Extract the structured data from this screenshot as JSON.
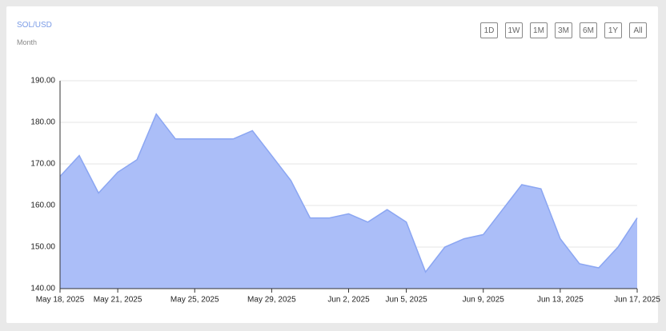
{
  "chart_data": {
    "type": "area",
    "title": "SOL/USD",
    "subtitle": "Month",
    "range_buttons": [
      "1D",
      "1W",
      "1M",
      "3M",
      "6M",
      "1Y",
      "All"
    ],
    "x": [
      "2025-05-18",
      "2025-05-19",
      "2025-05-20",
      "2025-05-21",
      "2025-05-22",
      "2025-05-23",
      "2025-05-24",
      "2025-05-25",
      "2025-05-26",
      "2025-05-27",
      "2025-05-28",
      "2025-05-29",
      "2025-05-30",
      "2025-05-31",
      "2025-06-01",
      "2025-06-02",
      "2025-06-03",
      "2025-06-04",
      "2025-06-05",
      "2025-06-06",
      "2025-06-07",
      "2025-06-08",
      "2025-06-09",
      "2025-06-10",
      "2025-06-11",
      "2025-06-12",
      "2025-06-13",
      "2025-06-14",
      "2025-06-15",
      "2025-06-16",
      "2025-06-17"
    ],
    "series": [
      {
        "name": "SOL/USD",
        "color": "#8ba6f2",
        "fill": "#abbef8",
        "values": [
          167,
          172,
          163,
          168,
          171,
          182,
          176,
          176,
          176,
          176,
          178,
          172,
          166,
          157,
          157,
          158,
          156,
          159,
          156,
          144,
          150,
          152,
          153,
          159,
          165,
          164,
          152,
          146,
          145,
          150,
          157
        ]
      }
    ],
    "xlim": [
      "2025-05-18",
      "2025-06-17"
    ],
    "xticks": [
      {
        "value": "2025-05-18",
        "label": "May 18, 2025"
      },
      {
        "value": "2025-05-21",
        "label": "May 21, 2025"
      },
      {
        "value": "2025-05-25",
        "label": "May 25, 2025"
      },
      {
        "value": "2025-05-29",
        "label": "May 29, 2025"
      },
      {
        "value": "2025-06-02",
        "label": "Jun 2, 2025"
      },
      {
        "value": "2025-06-05",
        "label": "Jun 5, 2025"
      },
      {
        "value": "2025-06-09",
        "label": "Jun 9, 2025"
      },
      {
        "value": "2025-06-13",
        "label": "Jun 13, 2025"
      },
      {
        "value": "2025-06-17",
        "label": "Jun 17, 2025"
      }
    ],
    "ylim": [
      140,
      190
    ],
    "yticks": [
      {
        "value": 140,
        "label": "140.00"
      },
      {
        "value": 150,
        "label": "150.00"
      },
      {
        "value": 160,
        "label": "160.00"
      },
      {
        "value": 170,
        "label": "170.00"
      },
      {
        "value": 180,
        "label": "180.00"
      },
      {
        "value": 190,
        "label": "190.00"
      }
    ],
    "grid": true
  }
}
